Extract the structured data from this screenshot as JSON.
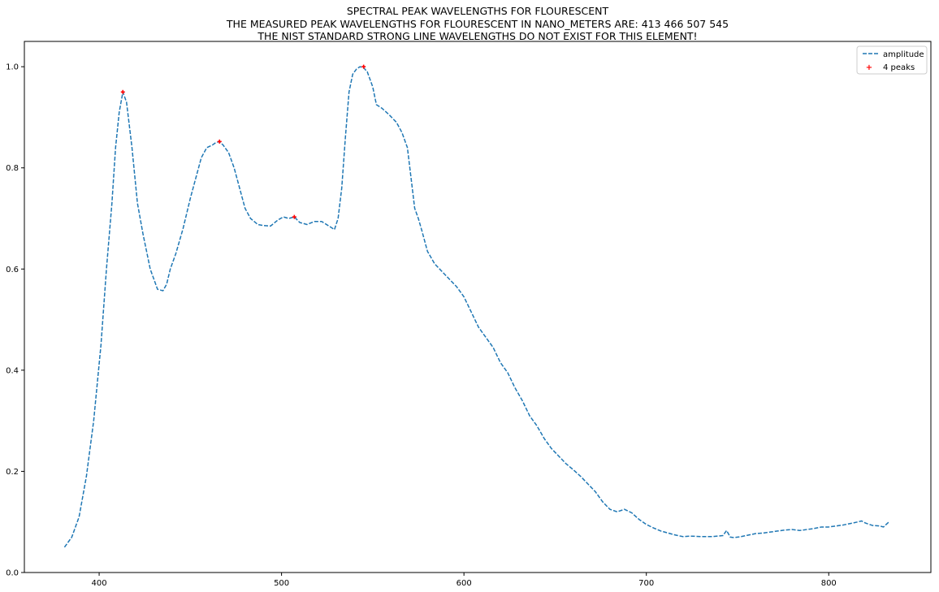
{
  "chart_data": {
    "type": "line",
    "title": "SPECTRAL PEAK WAVELENGTHS FOR FLOURESCENT",
    "subtitle_lines": [
      "THE MEASURED PEAK WAVELENGTHS FOR FLOURESCENT IN NANO_METERS ARE: 413 466 507 545",
      "THE NIST STANDARD STRONG LINE WAVELENGTHS DO NOT EXIST FOR THIS ELEMENT!"
    ],
    "xlabel": "",
    "ylabel": "",
    "xlim": [
      359,
      856
    ],
    "ylim": [
      0.0,
      1.05
    ],
    "x_ticks": [
      400,
      500,
      600,
      700,
      800
    ],
    "x_tick_labels": [
      "400",
      "500",
      "600",
      "700",
      "800"
    ],
    "y_ticks": [
      0.0,
      0.2,
      0.4,
      0.6,
      0.8,
      1.0
    ],
    "y_tick_labels": [
      "0.0",
      "0.2",
      "0.4",
      "0.6",
      "0.8",
      "1.0"
    ],
    "grid": false,
    "legend_position": "top-right",
    "series": [
      {
        "name": "amplitude",
        "style": "dashed",
        "color": "#1f77b4",
        "x": [
          381,
          385,
          389,
          393,
          397,
          401,
          404,
          407,
          409,
          411,
          413,
          415,
          418,
          421,
          424,
          428,
          432,
          435,
          437,
          439,
          442,
          446,
          450,
          453,
          456,
          459,
          462,
          464,
          466,
          468,
          471,
          474,
          477,
          480,
          483,
          487,
          490,
          494,
          498,
          501,
          504,
          507,
          510,
          514,
          518,
          522,
          526,
          529,
          531,
          533,
          535,
          537,
          539,
          541,
          543,
          545,
          547,
          550,
          552,
          555,
          559,
          563,
          566,
          569,
          571,
          573,
          575,
          577,
          580,
          584,
          588,
          592,
          596,
          600,
          604,
          608,
          612,
          616,
          620,
          624,
          628,
          632,
          636,
          640,
          644,
          648,
          652,
          656,
          660,
          664,
          668,
          672,
          676,
          680,
          684,
          688,
          692,
          696,
          700,
          704,
          708,
          712,
          716,
          720,
          724,
          730,
          736,
          742,
          744,
          746,
          748,
          752,
          756,
          760,
          764,
          768,
          772,
          776,
          780,
          784,
          788,
          792,
          796,
          800,
          804,
          808,
          812,
          816,
          818,
          820,
          824,
          828,
          830,
          833
        ],
        "y": [
          0.05,
          0.07,
          0.11,
          0.19,
          0.3,
          0.45,
          0.6,
          0.73,
          0.84,
          0.91,
          0.95,
          0.93,
          0.84,
          0.73,
          0.67,
          0.6,
          0.56,
          0.557,
          0.57,
          0.6,
          0.63,
          0.68,
          0.74,
          0.78,
          0.82,
          0.84,
          0.845,
          0.85,
          0.852,
          0.845,
          0.83,
          0.8,
          0.76,
          0.72,
          0.7,
          0.688,
          0.686,
          0.685,
          0.697,
          0.703,
          0.7,
          0.703,
          0.692,
          0.688,
          0.694,
          0.694,
          0.685,
          0.678,
          0.7,
          0.76,
          0.86,
          0.95,
          0.985,
          0.995,
          1.0,
          0.998,
          0.99,
          0.96,
          0.925,
          0.918,
          0.905,
          0.89,
          0.87,
          0.84,
          0.78,
          0.72,
          0.7,
          0.675,
          0.635,
          0.61,
          0.595,
          0.58,
          0.565,
          0.545,
          0.515,
          0.485,
          0.465,
          0.445,
          0.415,
          0.395,
          0.365,
          0.34,
          0.31,
          0.29,
          0.265,
          0.245,
          0.23,
          0.215,
          0.203,
          0.19,
          0.175,
          0.16,
          0.14,
          0.125,
          0.12,
          0.125,
          0.118,
          0.105,
          0.095,
          0.088,
          0.082,
          0.078,
          0.074,
          0.071,
          0.072,
          0.071,
          0.071,
          0.073,
          0.083,
          0.07,
          0.069,
          0.071,
          0.074,
          0.077,
          0.078,
          0.08,
          0.082,
          0.084,
          0.085,
          0.083,
          0.085,
          0.087,
          0.09,
          0.09,
          0.092,
          0.094,
          0.097,
          0.1,
          0.102,
          0.098,
          0.093,
          0.092,
          0.09,
          0.1
        ]
      },
      {
        "name": "4 peaks",
        "style": "markers",
        "color": "#ff0000",
        "x": [
          413,
          466,
          507,
          545
        ],
        "y": [
          0.95,
          0.852,
          0.703,
          1.0
        ]
      }
    ]
  }
}
